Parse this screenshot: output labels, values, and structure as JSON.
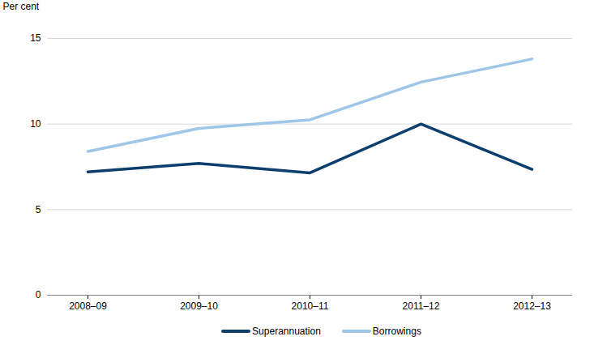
{
  "chart_data": {
    "type": "line",
    "y_label": "Per cent",
    "categories": [
      "2008–09",
      "2009–10",
      "2010–11",
      "2011–12",
      "2012–13"
    ],
    "series": [
      {
        "name": "Superannuation",
        "color": "#0d3f6e",
        "values": [
          7.2,
          7.7,
          7.15,
          10.0,
          7.35
        ]
      },
      {
        "name": "Borrowings",
        "color": "#9dc6e8",
        "values": [
          8.4,
          9.75,
          10.25,
          12.45,
          13.8
        ]
      }
    ],
    "ylim": [
      0,
      15
    ],
    "yticks": [
      0,
      5,
      10,
      15
    ],
    "grid": true,
    "legend": "bottom"
  }
}
